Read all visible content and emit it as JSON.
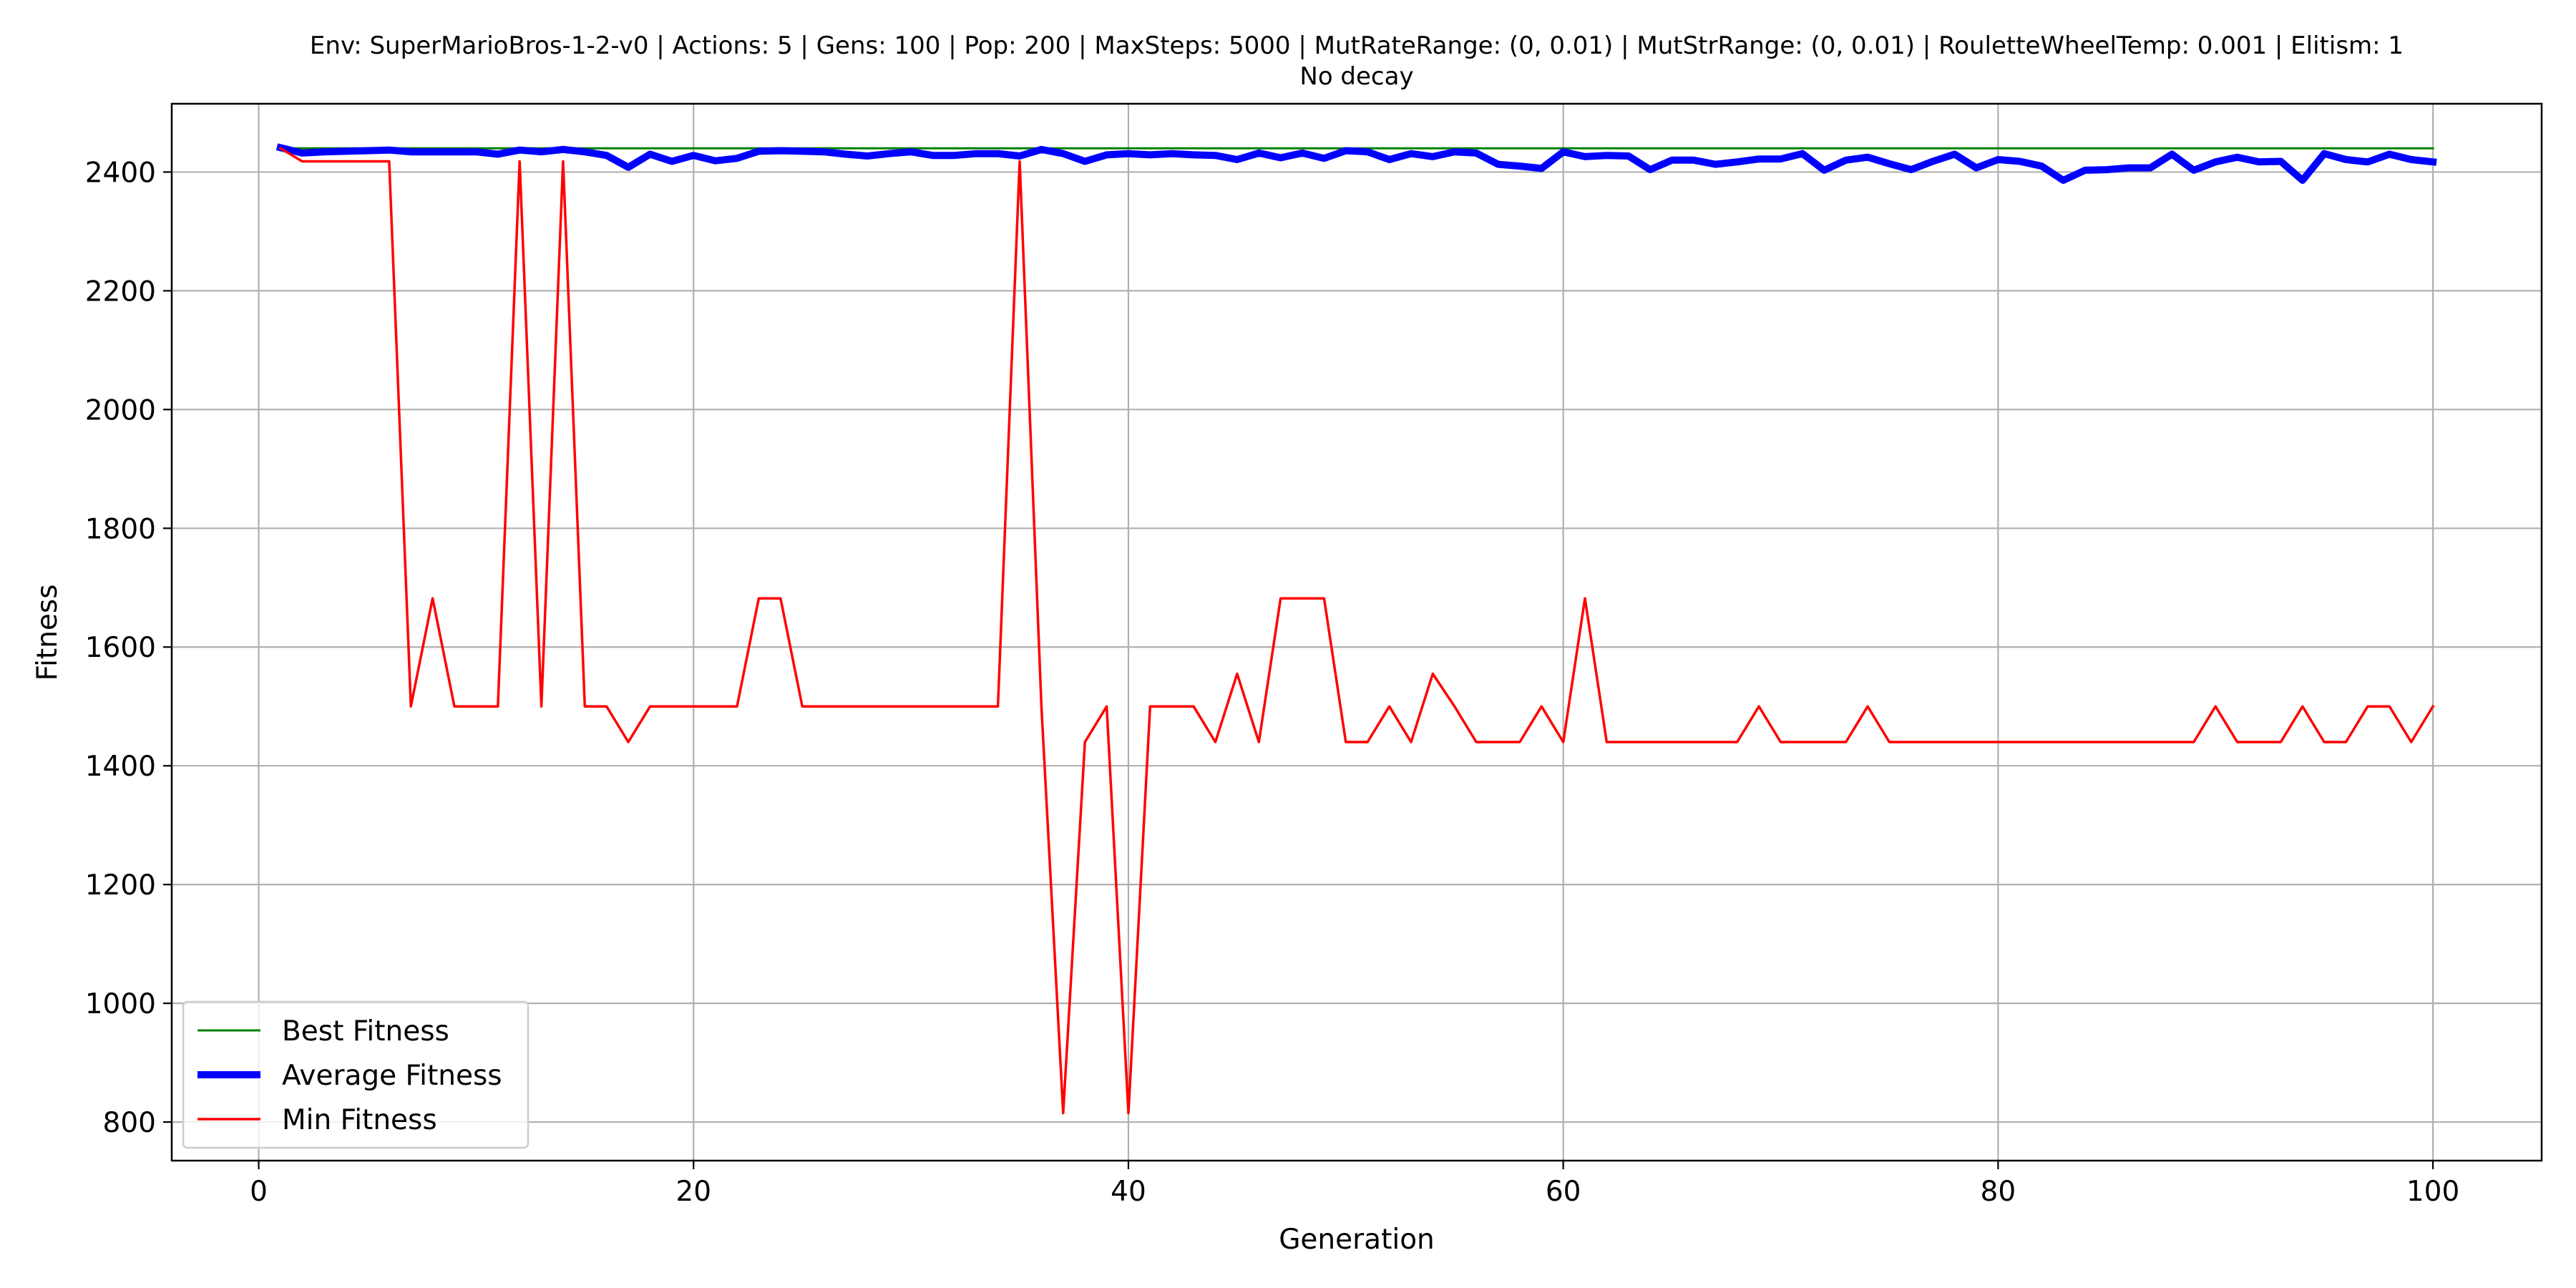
{
  "chart_data": {
    "type": "line",
    "title": "Env: SuperMarioBros-1-2-v0 | Actions: 5 | Gens: 100 | Pop: 200 | MaxSteps: 5000 | MutRateRange: (0, 0.01) | MutStrRange: (0, 0.01) | RouletteWheelTemp: 0.001 | Elitism: 1",
    "subtitle": "No decay",
    "xlabel": "Generation",
    "ylabel": "Fitness",
    "xlim": [
      -4,
      105
    ],
    "ylim": [
      735,
      2515
    ],
    "xticks": [
      0,
      20,
      40,
      60,
      80,
      100
    ],
    "yticks": [
      800,
      1000,
      1200,
      1400,
      1600,
      1800,
      2000,
      2200,
      2400
    ],
    "grid": true,
    "legend": "lower-left",
    "x": [
      1,
      2,
      3,
      4,
      5,
      6,
      7,
      8,
      9,
      10,
      11,
      12,
      13,
      14,
      15,
      16,
      17,
      18,
      19,
      20,
      21,
      22,
      23,
      24,
      25,
      26,
      27,
      28,
      29,
      30,
      31,
      32,
      33,
      34,
      35,
      36,
      37,
      38,
      39,
      40,
      41,
      42,
      43,
      44,
      45,
      46,
      47,
      48,
      49,
      50,
      51,
      52,
      53,
      54,
      55,
      56,
      57,
      58,
      59,
      60,
      61,
      62,
      63,
      64,
      65,
      66,
      67,
      68,
      69,
      70,
      71,
      72,
      73,
      74,
      75,
      76,
      77,
      78,
      79,
      80,
      81,
      82,
      83,
      84,
      85,
      86,
      87,
      88,
      89,
      90,
      91,
      92,
      93,
      94,
      95,
      96,
      97,
      98,
      99,
      100
    ],
    "series": [
      {
        "name": "Best Fitness",
        "color": "#008000",
        "values": [
          2440,
          2440,
          2440,
          2440,
          2440,
          2440,
          2440,
          2440,
          2440,
          2440,
          2440,
          2440,
          2440,
          2440,
          2440,
          2440,
          2440,
          2440,
          2440,
          2440,
          2440,
          2440,
          2440,
          2440,
          2440,
          2440,
          2440,
          2440,
          2440,
          2440,
          2440,
          2440,
          2440,
          2440,
          2440,
          2440,
          2440,
          2440,
          2440,
          2440,
          2440,
          2440,
          2440,
          2440,
          2440,
          2440,
          2440,
          2440,
          2440,
          2440,
          2440,
          2440,
          2440,
          2440,
          2440,
          2440,
          2440,
          2440,
          2440,
          2440,
          2440,
          2440,
          2440,
          2440,
          2440,
          2440,
          2440,
          2440,
          2440,
          2440,
          2440,
          2440,
          2440,
          2440,
          2440,
          2440,
          2440,
          2440,
          2440,
          2440,
          2440,
          2440,
          2440,
          2440,
          2440,
          2440,
          2440,
          2440,
          2440,
          2440,
          2440,
          2440,
          2440,
          2440,
          2440,
          2440,
          2440,
          2440,
          2440,
          2440
        ]
      },
      {
        "name": "Average Fitness",
        "color": "#0000ff",
        "values": [
          2441,
          2432,
          2434,
          2435,
          2436,
          2437,
          2434,
          2434,
          2434,
          2434,
          2430,
          2437,
          2434,
          2438,
          2434,
          2428,
          2408,
          2430,
          2418,
          2428,
          2419,
          2423,
          2435,
          2436,
          2435,
          2434,
          2430,
          2427,
          2431,
          2434,
          2428,
          2428,
          2431,
          2431,
          2427,
          2438,
          2431,
          2418,
          2429,
          2431,
          2429,
          2431,
          2429,
          2428,
          2421,
          2432,
          2424,
          2432,
          2423,
          2436,
          2434,
          2421,
          2431,
          2426,
          2434,
          2432,
          2413,
          2410,
          2406,
          2434,
          2426,
          2428,
          2427,
          2404,
          2420,
          2420,
          2413,
          2417,
          2422,
          2422,
          2431,
          2403,
          2420,
          2425,
          2414,
          2404,
          2418,
          2430,
          2407,
          2421,
          2418,
          2410,
          2386,
          2403,
          2404,
          2407,
          2407,
          2430,
          2403,
          2417,
          2425,
          2417,
          2418,
          2386,
          2431,
          2421,
          2417,
          2430,
          2421,
          2417
        ]
      },
      {
        "name": "Min Fitness",
        "color": "#ff0000",
        "values": [
          2440,
          2418,
          2418,
          2418,
          2418,
          2418,
          1500,
          1682,
          1500,
          1500,
          1500,
          2418,
          1500,
          2418,
          1500,
          1500,
          1440,
          1500,
          1500,
          1500,
          1500,
          1500,
          1682,
          1682,
          1500,
          1500,
          1500,
          1500,
          1500,
          1500,
          1500,
          1500,
          1500,
          1500,
          2418,
          1500,
          815,
          1440,
          1500,
          815,
          1500,
          1500,
          1500,
          1440,
          1555,
          1440,
          1682,
          1682,
          1682,
          1440,
          1440,
          1500,
          1440,
          1555,
          1500,
          1440,
          1440,
          1440,
          1500,
          1440,
          1682,
          1440,
          1440,
          1440,
          1440,
          1440,
          1440,
          1440,
          1500,
          1440,
          1440,
          1440,
          1440,
          1500,
          1440,
          1440,
          1440,
          1440,
          1440,
          1440,
          1440,
          1440,
          1440,
          1440,
          1440,
          1440,
          1440,
          1440,
          1440,
          1500,
          1440,
          1440,
          1440,
          1500,
          1440,
          1440,
          1500,
          1500,
          1440,
          1500
        ]
      }
    ]
  }
}
